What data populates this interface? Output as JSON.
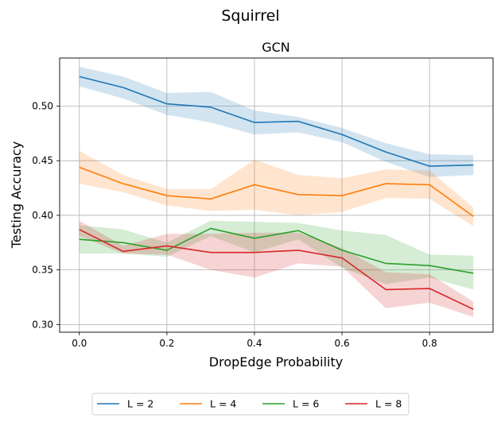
{
  "figure": {
    "suptitle": "Squirrel"
  },
  "chart_data": {
    "type": "line",
    "title": "GCN",
    "xlabel": "DropEdge Probability",
    "ylabel": "Testing Accuracy",
    "xlim": [
      -0.045,
      0.945
    ],
    "ylim": [
      0.293,
      0.544
    ],
    "xticks": [
      0.0,
      0.2,
      0.4,
      0.6,
      0.8
    ],
    "xtick_labels": [
      "0.0",
      "0.2",
      "0.4",
      "0.6",
      "0.8"
    ],
    "yticks": [
      0.3,
      0.35,
      0.4,
      0.45,
      0.5
    ],
    "ytick_labels": [
      "0.30",
      "0.35",
      "0.40",
      "0.45",
      "0.50"
    ],
    "grid": true,
    "legend_position": "bottom-center",
    "x": [
      0.0,
      0.1,
      0.2,
      0.3,
      0.4,
      0.5,
      0.6,
      0.7,
      0.8,
      0.9
    ],
    "series": [
      {
        "name": "L = 2",
        "color": "#1f77b4",
        "values": [
          0.527,
          0.517,
          0.502,
          0.499,
          0.485,
          0.486,
          0.474,
          0.458,
          0.445,
          0.446
        ],
        "upper": [
          0.536,
          0.527,
          0.512,
          0.513,
          0.496,
          0.49,
          0.48,
          0.466,
          0.456,
          0.455
        ],
        "lower": [
          0.518,
          0.507,
          0.492,
          0.485,
          0.474,
          0.476,
          0.467,
          0.449,
          0.435,
          0.437
        ]
      },
      {
        "name": "L = 4",
        "color": "#ff7f0e",
        "values": [
          0.444,
          0.429,
          0.418,
          0.415,
          0.428,
          0.419,
          0.418,
          0.429,
          0.428,
          0.399
        ],
        "upper": [
          0.459,
          0.437,
          0.424,
          0.424,
          0.451,
          0.437,
          0.434,
          0.442,
          0.441,
          0.407
        ],
        "lower": [
          0.429,
          0.421,
          0.409,
          0.404,
          0.405,
          0.4,
          0.403,
          0.416,
          0.415,
          0.39
        ]
      },
      {
        "name": "L = 6",
        "color": "#2ca02c",
        "values": [
          0.378,
          0.375,
          0.368,
          0.388,
          0.379,
          0.386,
          0.368,
          0.356,
          0.354,
          0.347
        ],
        "upper": [
          0.391,
          0.387,
          0.375,
          0.395,
          0.394,
          0.393,
          0.386,
          0.382,
          0.364,
          0.363
        ],
        "lower": [
          0.365,
          0.365,
          0.362,
          0.381,
          0.366,
          0.378,
          0.352,
          0.337,
          0.343,
          0.332
        ]
      },
      {
        "name": "L = 8",
        "color": "#d62728",
        "values": [
          0.387,
          0.367,
          0.372,
          0.366,
          0.366,
          0.368,
          0.361,
          0.332,
          0.333,
          0.314
        ],
        "upper": [
          0.395,
          0.372,
          0.383,
          0.383,
          0.384,
          0.384,
          0.37,
          0.348,
          0.346,
          0.321
        ],
        "lower": [
          0.381,
          0.365,
          0.364,
          0.35,
          0.343,
          0.356,
          0.353,
          0.315,
          0.32,
          0.307
        ]
      }
    ]
  }
}
